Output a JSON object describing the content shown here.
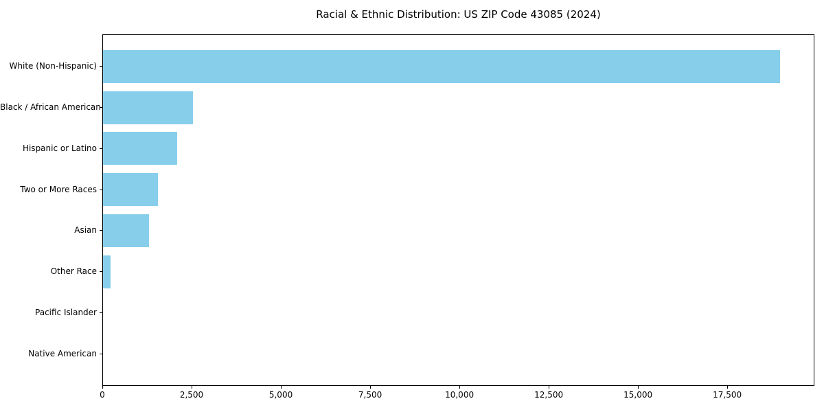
{
  "title": "Racial & Ethnic Distribution: US ZIP Code 43085 (2024)",
  "colors": {
    "bar": "#87CEEB",
    "axis": "#000000",
    "text": "#000000",
    "background": "#ffffff"
  },
  "chart_data": {
    "type": "bar",
    "orientation": "horizontal",
    "title": "Racial & Ethnic Distribution: US ZIP Code 43085 (2024)",
    "xlabel": "",
    "ylabel": "",
    "categories": [
      "White (Non-Hispanic)",
      "Black / African American",
      "Hispanic or Latino",
      "Two or More Races",
      "Asian",
      "Other Race",
      "Pacific Islander",
      "Native American"
    ],
    "values": [
      18950,
      2515,
      2070,
      1540,
      1290,
      205,
      0,
      0
    ],
    "xlim": [
      0,
      19900
    ],
    "x_ticks": [
      0,
      2500,
      5000,
      7500,
      10000,
      12500,
      15000,
      17500
    ],
    "x_tick_labels": [
      "0",
      "2,500",
      "5,000",
      "7,500",
      "10,000",
      "12,500",
      "15,000",
      "17,500"
    ],
    "bar_color": "#87CEEB",
    "grid": false,
    "legend": null
  }
}
